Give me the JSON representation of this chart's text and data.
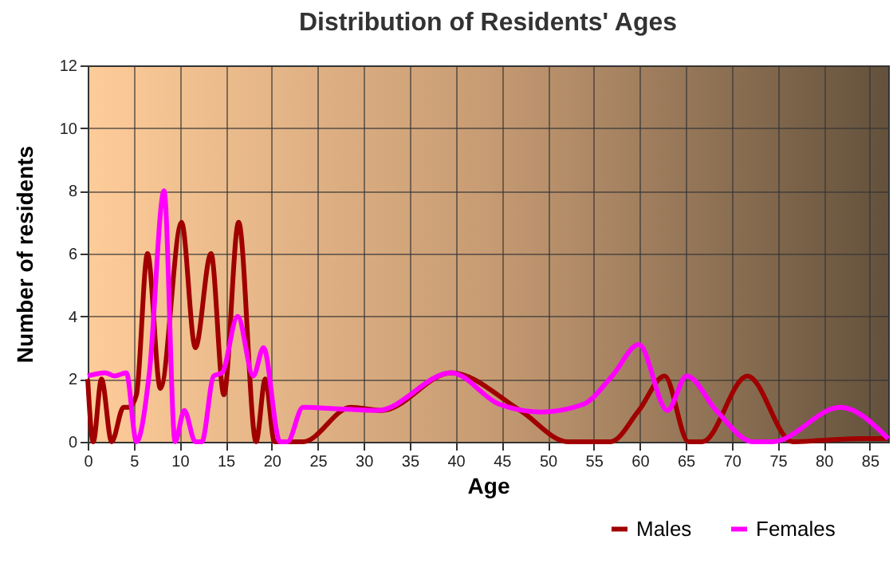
{
  "chart_data": {
    "type": "line",
    "title": "Distribution of Residents' Ages",
    "xlabel": "Age",
    "ylabel": "Number of residents",
    "xlim": [
      0,
      87
    ],
    "xticks": [
      0,
      5,
      10,
      15,
      20,
      25,
      30,
      35,
      40,
      45,
      50,
      55,
      60,
      65,
      70,
      75,
      80,
      85
    ],
    "ylim": [
      0,
      12
    ],
    "yticks": [
      0,
      2,
      4,
      6,
      8,
      10,
      12
    ],
    "grid": true,
    "legend": "bottom right",
    "marker": "none",
    "line_style": "solid",
    "series": [
      {
        "name": "Males",
        "color": "#a00000",
        "x": [
          0,
          0.6,
          1.5,
          2.6,
          3.9,
          4.5,
          5.3,
          6.5,
          7.9,
          10.2,
          11.7,
          13.4,
          14.8,
          16.4,
          18.3,
          19.3,
          20.3,
          23.4,
          28.6,
          32,
          39.5,
          47,
          52.2,
          56.8,
          59.9,
          62.7,
          65.3,
          66.8,
          71.7,
          76.6,
          80,
          84,
          87
        ],
        "values": [
          2,
          0,
          2,
          0,
          1.1,
          1.1,
          1.5,
          6,
          1.7,
          7,
          3,
          6,
          1.5,
          7,
          0,
          2,
          0,
          0,
          1.1,
          1,
          2.2,
          1,
          0,
          0,
          1,
          2.1,
          0,
          0,
          2.1,
          0,
          0.05,
          0.1,
          0.1
        ]
      },
      {
        "name": "Females",
        "color": "#ff00ff",
        "x": [
          0,
          1.9,
          2.9,
          4.2,
          5.3,
          6.7,
          8.3,
          9.5,
          10.5,
          11.7,
          12.4,
          13.7,
          14.6,
          16.3,
          18,
          19.1,
          20.9,
          21.7,
          23.4,
          27.4,
          31.5,
          39.5,
          44.7,
          49.3,
          53.9,
          57,
          59.9,
          63,
          65.1,
          68.3,
          72.3,
          74.4,
          81.8,
          87
        ],
        "values": [
          2.1,
          2.2,
          2.1,
          2.2,
          0,
          2.2,
          8,
          0,
          1,
          0,
          0,
          2.1,
          2.2,
          4,
          2.1,
          3,
          0,
          0,
          1.1,
          1.05,
          1,
          2.2,
          1.2,
          0.95,
          1.2,
          2.1,
          3.1,
          1,
          2.1,
          1,
          0,
          0,
          1.1,
          0.1
        ]
      }
    ]
  }
}
